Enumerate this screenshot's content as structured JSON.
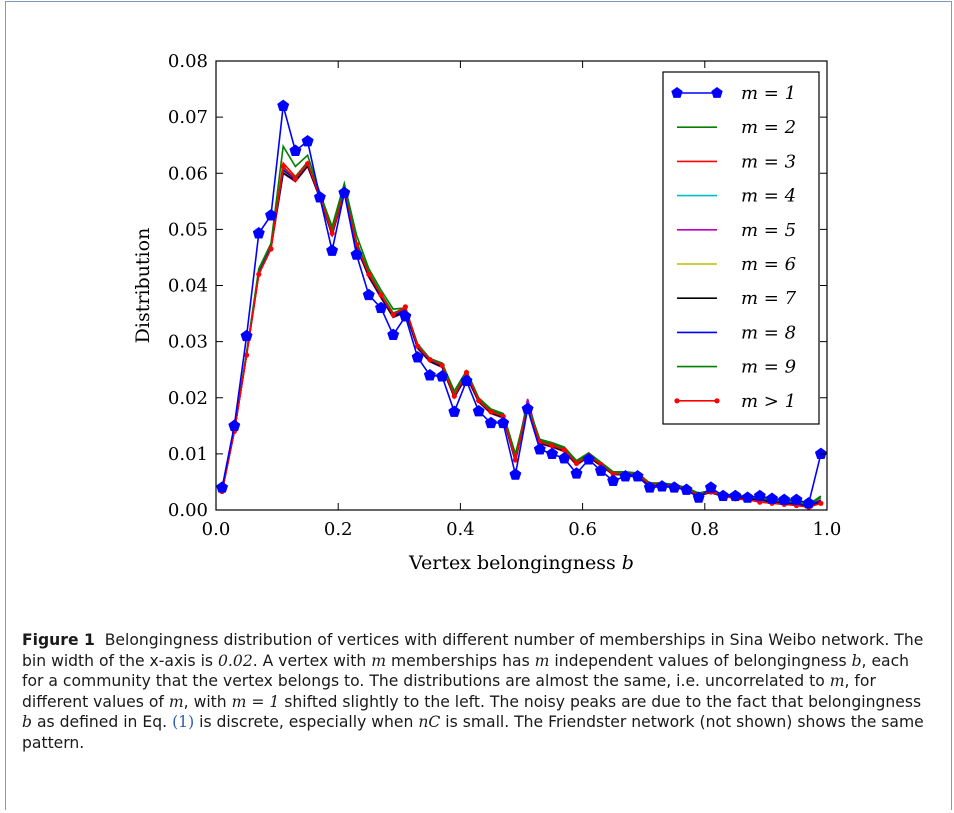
{
  "chart_data": {
    "type": "line",
    "title": "",
    "xlabel": "Vertex belongingness b",
    "ylabel": "Distribution",
    "xlim": [
      0.0,
      1.0
    ],
    "ylim": [
      0.0,
      0.08
    ],
    "xticks": [
      "0.0",
      "0.2",
      "0.4",
      "0.6",
      "0.8",
      "1.0"
    ],
    "yticks": [
      "0.00",
      "0.01",
      "0.02",
      "0.03",
      "0.04",
      "0.05",
      "0.06",
      "0.07",
      "0.08"
    ],
    "legend_position": "top-right",
    "x": [
      0.01,
      0.03,
      0.05,
      0.07,
      0.09,
      0.11,
      0.13,
      0.15,
      0.17,
      0.19,
      0.21,
      0.23,
      0.25,
      0.27,
      0.29,
      0.31,
      0.33,
      0.35,
      0.37,
      0.39,
      0.41,
      0.43,
      0.45,
      0.47,
      0.49,
      0.51,
      0.53,
      0.55,
      0.57,
      0.59,
      0.61,
      0.63,
      0.65,
      0.67,
      0.69,
      0.71,
      0.73,
      0.75,
      0.77,
      0.79,
      0.81,
      0.83,
      0.85,
      0.87,
      0.89,
      0.91,
      0.93,
      0.95,
      0.97,
      0.99
    ],
    "series": [
      {
        "name": "m = 1",
        "color": "#0000ff",
        "marker": "pentagon",
        "values": [
          0.004,
          0.015,
          0.031,
          0.0493,
          0.0525,
          0.072,
          0.064,
          0.0657,
          0.0557,
          0.0462,
          0.0565,
          0.0455,
          0.0383,
          0.036,
          0.0312,
          0.0345,
          0.0272,
          0.024,
          0.0238,
          0.0175,
          0.023,
          0.0176,
          0.0155,
          0.0155,
          0.0063,
          0.018,
          0.0108,
          0.01,
          0.0092,
          0.0065,
          0.009,
          0.007,
          0.0052,
          0.006,
          0.006,
          0.004,
          0.0042,
          0.004,
          0.0036,
          0.0022,
          0.004,
          0.0025,
          0.0025,
          0.0022,
          0.0025,
          0.002,
          0.0018,
          0.0018,
          0.0012,
          0.01
        ]
      },
      {
        "name": "m = 2",
        "color": "#008000",
        "marker": "none",
        "values": [
          0.0035,
          0.0142,
          0.028,
          0.043,
          0.0475,
          0.0648,
          0.0612,
          0.0632,
          0.0565,
          0.0505,
          0.0582,
          0.049,
          0.043,
          0.0392,
          0.0358,
          0.036,
          0.0296,
          0.027,
          0.0262,
          0.0212,
          0.0248,
          0.02,
          0.018,
          0.0172,
          0.01,
          0.0188,
          0.0126,
          0.012,
          0.0112,
          0.0088,
          0.0102,
          0.0085,
          0.0068,
          0.0068,
          0.0066,
          0.0048,
          0.0048,
          0.0045,
          0.004,
          0.003,
          0.0035,
          0.0028,
          0.0026,
          0.0024,
          0.0022,
          0.0018,
          0.0016,
          0.0014,
          0.001,
          0.0025
        ]
      },
      {
        "name": "m = 3",
        "color": "#ff0000",
        "marker": "none",
        "values": [
          0.0033,
          0.014,
          0.0278,
          0.0422,
          0.0468,
          0.0618,
          0.0594,
          0.062,
          0.056,
          0.0495,
          0.057,
          0.0475,
          0.0422,
          0.0385,
          0.035,
          0.0358,
          0.0292,
          0.0268,
          0.0258,
          0.0205,
          0.0242,
          0.0196,
          0.0176,
          0.0168,
          0.009,
          0.0186,
          0.0122,
          0.0116,
          0.0108,
          0.0084,
          0.0098,
          0.0082,
          0.0065,
          0.0065,
          0.0063,
          0.0046,
          0.0046,
          0.0043,
          0.0038,
          0.0028,
          0.0033,
          0.0026,
          0.0024,
          0.0022,
          0.002,
          0.0016,
          0.0014,
          0.0012,
          0.0008,
          0.0018
        ]
      },
      {
        "name": "m = 4",
        "color": "#00bfbf",
        "marker": "none",
        "values": [
          0.0034,
          0.0141,
          0.0279,
          0.0425,
          0.047,
          0.0605,
          0.0588,
          0.0615,
          0.0558,
          0.0492,
          0.0568,
          0.047,
          0.0418,
          0.038,
          0.0345,
          0.0355,
          0.029,
          0.0266,
          0.0256,
          0.0202,
          0.024,
          0.0194,
          0.0174,
          0.0166,
          0.0088,
          0.019,
          0.012,
          0.0114,
          0.0106,
          0.0082,
          0.0096,
          0.008,
          0.0064,
          0.0064,
          0.0062,
          0.0045,
          0.0045,
          0.0042,
          0.0037,
          0.0027,
          0.0032,
          0.0025,
          0.0023,
          0.0021,
          0.0019,
          0.0015,
          0.0013,
          0.0011,
          0.0008,
          0.0016
        ]
      },
      {
        "name": "m = 5",
        "color": "#bf00bf",
        "marker": "none",
        "values": [
          0.0034,
          0.014,
          0.0276,
          0.042,
          0.0466,
          0.06,
          0.0585,
          0.0612,
          0.0555,
          0.049,
          0.0565,
          0.0468,
          0.0415,
          0.0378,
          0.0343,
          0.0352,
          0.0288,
          0.0264,
          0.0254,
          0.02,
          0.0238,
          0.0192,
          0.0172,
          0.0164,
          0.0086,
          0.0198,
          0.0118,
          0.0112,
          0.0104,
          0.008,
          0.0094,
          0.0079,
          0.0063,
          0.0063,
          0.0061,
          0.0044,
          0.0044,
          0.0041,
          0.0036,
          0.0026,
          0.0031,
          0.0024,
          0.0022,
          0.002,
          0.0018,
          0.0014,
          0.0012,
          0.001,
          0.0007,
          0.0015
        ]
      },
      {
        "name": "m = 6",
        "color": "#bfbf00",
        "marker": "none",
        "values": [
          0.0034,
          0.0141,
          0.0278,
          0.0423,
          0.0469,
          0.0603,
          0.0587,
          0.0614,
          0.0557,
          0.0491,
          0.0567,
          0.047,
          0.0417,
          0.038,
          0.0345,
          0.0354,
          0.029,
          0.0265,
          0.0255,
          0.0201,
          0.0239,
          0.0193,
          0.0173,
          0.0165,
          0.0087,
          0.0185,
          0.0119,
          0.0113,
          0.0105,
          0.0081,
          0.0095,
          0.008,
          0.0063,
          0.0064,
          0.0062,
          0.0045,
          0.0045,
          0.0042,
          0.0037,
          0.0027,
          0.0032,
          0.0025,
          0.0023,
          0.0021,
          0.0019,
          0.0015,
          0.0013,
          0.0011,
          0.0007,
          0.0016
        ]
      },
      {
        "name": "m = 7",
        "color": "#000000",
        "marker": "none",
        "values": [
          0.0033,
          0.014,
          0.0277,
          0.0421,
          0.0467,
          0.0601,
          0.0586,
          0.0613,
          0.0556,
          0.049,
          0.0566,
          0.0469,
          0.0416,
          0.0379,
          0.0344,
          0.0353,
          0.0289,
          0.0265,
          0.0255,
          0.0201,
          0.0238,
          0.0193,
          0.0173,
          0.0165,
          0.0087,
          0.0183,
          0.0119,
          0.0113,
          0.0105,
          0.0081,
          0.0095,
          0.0079,
          0.0063,
          0.0063,
          0.0061,
          0.0044,
          0.0044,
          0.0041,
          0.0036,
          0.0026,
          0.0031,
          0.0024,
          0.0022,
          0.002,
          0.0018,
          0.0014,
          0.0012,
          0.001,
          0.0007,
          0.0015
        ]
      },
      {
        "name": "m = 8",
        "color": "#0000ff",
        "marker": "none",
        "values": [
          0.0034,
          0.0141,
          0.0278,
          0.0424,
          0.047,
          0.0606,
          0.0589,
          0.0616,
          0.0559,
          0.0493,
          0.0569,
          0.0472,
          0.0419,
          0.0382,
          0.0347,
          0.0356,
          0.0291,
          0.0267,
          0.0257,
          0.0203,
          0.0241,
          0.0195,
          0.0175,
          0.0167,
          0.0089,
          0.0187,
          0.0121,
          0.0115,
          0.0107,
          0.0083,
          0.0097,
          0.0081,
          0.0064,
          0.0065,
          0.0063,
          0.0046,
          0.0046,
          0.0043,
          0.0038,
          0.0028,
          0.0033,
          0.0026,
          0.0024,
          0.0022,
          0.002,
          0.0016,
          0.0014,
          0.0012,
          0.0008,
          0.0017
        ]
      },
      {
        "name": "m = 9",
        "color": "#008000",
        "marker": "none",
        "values": [
          0.0035,
          0.0142,
          0.0281,
          0.0428,
          0.0474,
          0.061,
          0.0592,
          0.062,
          0.0562,
          0.0497,
          0.0574,
          0.0478,
          0.0424,
          0.0386,
          0.0351,
          0.036,
          0.0294,
          0.027,
          0.026,
          0.0206,
          0.0245,
          0.0198,
          0.0178,
          0.017,
          0.0092,
          0.019,
          0.0124,
          0.0118,
          0.011,
          0.0086,
          0.01,
          0.0084,
          0.0066,
          0.0067,
          0.0065,
          0.0048,
          0.0048,
          0.0045,
          0.004,
          0.003,
          0.0035,
          0.0028,
          0.0026,
          0.0024,
          0.0022,
          0.0018,
          0.0016,
          0.0014,
          0.001,
          0.0022
        ]
      },
      {
        "name": "m > 1",
        "color": "#ff0000",
        "marker": "dot",
        "values": [
          0.0033,
          0.014,
          0.0276,
          0.042,
          0.0465,
          0.0612,
          0.059,
          0.0617,
          0.0558,
          0.0493,
          0.0568,
          0.0473,
          0.042,
          0.0383,
          0.0348,
          0.0362,
          0.0292,
          0.0268,
          0.0258,
          0.0203,
          0.0245,
          0.0195,
          0.0175,
          0.0167,
          0.0089,
          0.0182,
          0.0121,
          0.0115,
          0.0107,
          0.0083,
          0.0097,
          0.0081,
          0.0064,
          0.0065,
          0.0063,
          0.0046,
          0.0046,
          0.0043,
          0.0037,
          0.0027,
          0.0032,
          0.0025,
          0.002,
          0.0018,
          0.0014,
          0.0012,
          0.001,
          0.0008,
          0.0005,
          0.0012
        ]
      }
    ]
  },
  "caption": {
    "label": "Figure 1",
    "parts": [
      {
        "t": "Belongingness distribution of vertices with different number of memberships in Sina Weibo network. The bin width of the x-axis is ",
        "s": "text"
      },
      {
        "t": "0.02",
        "s": "math"
      },
      {
        "t": ". A vertex with ",
        "s": "text"
      },
      {
        "t": "m",
        "s": "math"
      },
      {
        "t": " memberships has ",
        "s": "text"
      },
      {
        "t": "m",
        "s": "math"
      },
      {
        "t": " independent values of belongingness ",
        "s": "text"
      },
      {
        "t": "b",
        "s": "math"
      },
      {
        "t": ", each for a community that the vertex belongs to. The distributions are almost the same, i.e. uncorrelated to ",
        "s": "text"
      },
      {
        "t": "m",
        "s": "math"
      },
      {
        "t": ", for different values of ",
        "s": "text"
      },
      {
        "t": "m",
        "s": "math"
      },
      {
        "t": ", with ",
        "s": "text"
      },
      {
        "t": "m = 1",
        "s": "math"
      },
      {
        "t": " shifted slightly to the left. The noisy peaks are due to the fact that belongingness ",
        "s": "text"
      },
      {
        "t": "b",
        "s": "math"
      },
      {
        "t": " as defined in Eq. ",
        "s": "text"
      },
      {
        "t": "(1)",
        "s": "ref"
      },
      {
        "t": " is discrete, especially when ",
        "s": "text"
      },
      {
        "t": "nC",
        "s": "math"
      },
      {
        "t": " is small. The Friendster network (not shown) shows the same pattern.",
        "s": "text"
      }
    ]
  }
}
